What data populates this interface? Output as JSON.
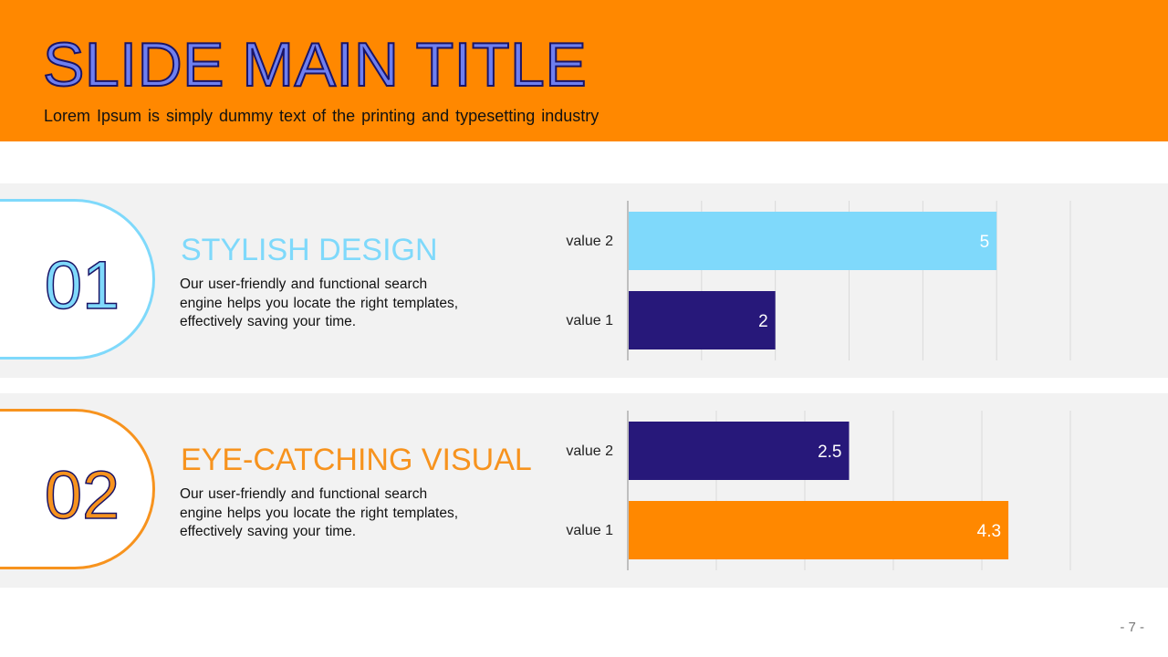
{
  "header": {
    "title": "SLIDE MAIN TITLE",
    "subtitle": "Lorem Ipsum is simply dummy text of the printing and typesetting industry"
  },
  "sections": [
    {
      "number": "01",
      "heading": "STYLISH DESIGN",
      "description": "Our user-friendly and functional search engine helps you locate the right templates, effectively saving your time.",
      "accent": "#7FD9FB"
    },
    {
      "number": "02",
      "heading": "EYE-CATCHING VISUAL",
      "description": "Our user-friendly and functional search engine helps you locate the right templates, effectively saving your time.",
      "accent": "#F7931E"
    }
  ],
  "chart_data": [
    {
      "type": "bar",
      "orientation": "horizontal",
      "categories": [
        "value 2",
        "value 1"
      ],
      "values": [
        5,
        2
      ],
      "colors": [
        "#7FD9FB",
        "#27187A"
      ],
      "xlim": [
        0,
        6
      ],
      "grid": true,
      "data_labels": true
    },
    {
      "type": "bar",
      "orientation": "horizontal",
      "categories": [
        "value 2",
        "value 1"
      ],
      "values": [
        2.5,
        4.3
      ],
      "colors": [
        "#27187A",
        "#FF8800"
      ],
      "xlim": [
        0,
        5
      ],
      "grid": true,
      "data_labels": true
    }
  ],
  "footer": {
    "page_number": "- 7 -"
  }
}
